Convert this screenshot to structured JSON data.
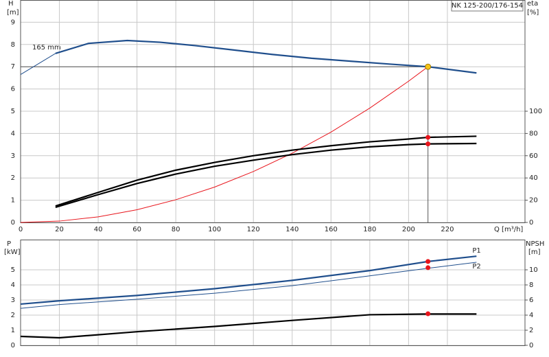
{
  "chart_data": [
    {
      "type": "line",
      "title": "NK 125-200/176-154",
      "y_label": "H",
      "y_unit": "[m]",
      "y2_label": "eta",
      "y2_unit": "[%]",
      "x_label": "Q [m³/h]",
      "annotation": "165 mm",
      "xlim": [
        0,
        260
      ],
      "xticks": [
        0,
        20,
        40,
        60,
        80,
        100,
        120,
        140,
        160,
        180,
        200,
        220
      ],
      "ylim": [
        0,
        10
      ],
      "yticks": [
        0,
        1,
        2,
        3,
        4,
        5,
        6,
        7,
        8,
        9
      ],
      "y2lim": [
        0,
        200
      ],
      "y2ticks": [
        0,
        20,
        40,
        60,
        80,
        100
      ],
      "grid": true,
      "series": [
        {
          "color": "#1f4e8c",
          "weight": "thin",
          "x": [
            0,
            18
          ],
          "values": [
            6.65,
            7.6
          ]
        },
        {
          "color": "#1f4e8c",
          "weight": "bold",
          "x": [
            18,
            35,
            55,
            72,
            90,
            110,
            130,
            150,
            170,
            190,
            210,
            235
          ],
          "values": [
            7.6,
            8.05,
            8.18,
            8.1,
            7.95,
            7.75,
            7.55,
            7.38,
            7.25,
            7.12,
            7.0,
            6.72
          ]
        },
        {
          "color": "#e8141b",
          "weight": "thin",
          "x": [
            0,
            20,
            40,
            60,
            80,
            100,
            120,
            140,
            160,
            180,
            200,
            210
          ],
          "values": [
            0,
            0.06,
            0.25,
            0.57,
            1.02,
            1.59,
            2.29,
            3.11,
            4.06,
            5.14,
            6.35,
            7.0
          ]
        },
        {
          "color": "#000000",
          "weight": "bold",
          "axis": "y2",
          "x": [
            18,
            40,
            60,
            80,
            100,
            120,
            140,
            160,
            180,
            200,
            210,
            235
          ],
          "values": [
            14.8,
            27,
            38,
            47,
            54,
            60,
            65,
            69,
            72.5,
            75,
            76.5,
            77.5
          ]
        },
        {
          "color": "#000000",
          "weight": "bold",
          "axis": "y2",
          "x": [
            18,
            40,
            60,
            80,
            100,
            120,
            140,
            160,
            180,
            200,
            210,
            235
          ],
          "values": [
            13.6,
            25,
            35,
            43.5,
            50.5,
            56,
            61,
            65,
            68,
            70,
            70.6,
            71
          ]
        },
        {
          "color": "#e8141b",
          "marker": true,
          "axis": "y2",
          "x": [
            210
          ],
          "values": [
            76.5
          ]
        },
        {
          "color": "#e8141b",
          "marker": true,
          "axis": "y2",
          "x": [
            210
          ],
          "values": [
            70.6
          ]
        }
      ],
      "duty_point": {
        "x": 210,
        "y": 7,
        "color": "#f5c518"
      }
    },
    {
      "type": "line",
      "y_label": "P",
      "y_unit": "[kW]",
      "y2_label": "NPSH",
      "y2_unit": "[m]",
      "xlim": [
        0,
        260
      ],
      "xticks": [
        0,
        20,
        40,
        60,
        80,
        100,
        120,
        140,
        160,
        180,
        200,
        220
      ],
      "show_xtick_labels": false,
      "ylim": [
        0,
        7
      ],
      "yticks": [
        0,
        1,
        2,
        3,
        4,
        5
      ],
      "y2lim": [
        0,
        14
      ],
      "y2ticks": [
        0,
        2,
        4,
        6,
        8,
        10
      ],
      "grid": true,
      "series": [
        {
          "name": "P1",
          "color": "#1f4e8c",
          "weight": "bold",
          "x": [
            0,
            20,
            60,
            100,
            140,
            180,
            210,
            235
          ],
          "values": [
            2.73,
            2.95,
            3.3,
            3.75,
            4.3,
            4.95,
            5.55,
            5.9
          ]
        },
        {
          "name": "P2",
          "color": "#1f4e8c",
          "weight": "thin",
          "x": [
            0,
            20,
            60,
            100,
            140,
            180,
            210,
            235
          ],
          "values": [
            2.45,
            2.7,
            3.05,
            3.45,
            3.95,
            4.6,
            5.1,
            5.5
          ]
        },
        {
          "color": "#000000",
          "weight": "bold",
          "axis": "y2",
          "x": [
            0,
            20,
            60,
            100,
            140,
            180,
            210,
            235
          ],
          "values": [
            1.18,
            1.0,
            1.8,
            2.5,
            3.3,
            4.05,
            4.15,
            4.15
          ]
        },
        {
          "color": "#e8141b",
          "marker": true,
          "x": [
            210
          ],
          "values": [
            5.55
          ]
        },
        {
          "color": "#e8141b",
          "marker": true,
          "x": [
            210
          ],
          "values": [
            5.14
          ]
        },
        {
          "color": "#e8141b",
          "marker": true,
          "axis": "y2",
          "x": [
            210
          ],
          "values": [
            4.18
          ]
        }
      ]
    }
  ]
}
